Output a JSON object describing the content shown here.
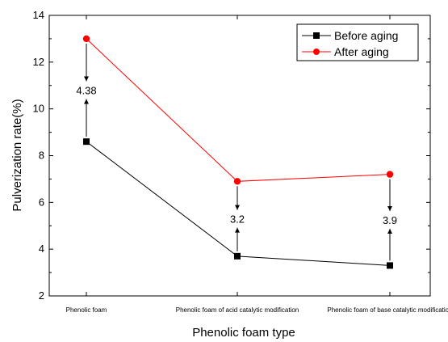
{
  "chart_data": {
    "type": "line",
    "title": "",
    "xlabel": "Phenolic foam type",
    "ylabel": "Pulverization rate(%)",
    "ylim": [
      2,
      14
    ],
    "yticks": [
      "2",
      "4",
      "6",
      "8",
      "10",
      "12",
      "14"
    ],
    "categories": [
      "Phenolic foam",
      "Phenolic foam of acid catalytic modification",
      "Phenolic foam of base catalytic modification"
    ],
    "series": [
      {
        "name": "Before aging",
        "values": [
          8.6,
          3.7,
          3.3
        ],
        "color": "#000000",
        "marker": "square"
      },
      {
        "name": "After aging",
        "values": [
          13.0,
          6.9,
          7.2
        ],
        "color": "#ff0000",
        "marker": "circle"
      }
    ],
    "annotations": [
      "4.38",
      "3.2",
      "3.9"
    ],
    "legend": "top-right",
    "grid": false
  }
}
